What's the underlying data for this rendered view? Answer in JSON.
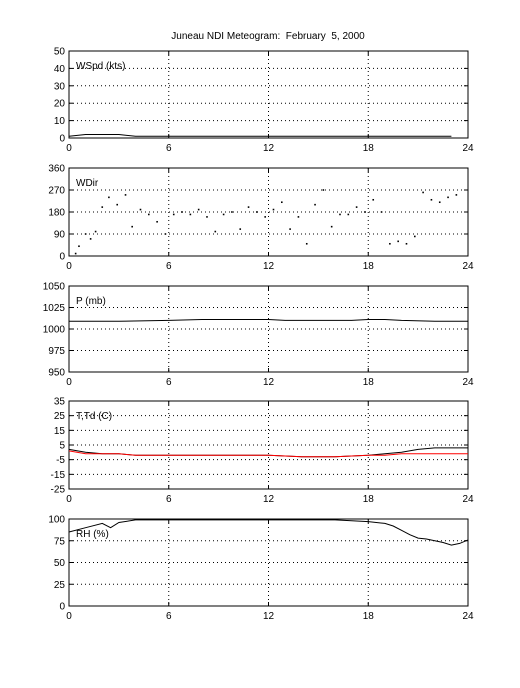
{
  "title": "Juneau NDI Meteogram:  February  5, 2000",
  "colors": {
    "temperature": "#000000",
    "dewpoint": "#ff0000",
    "axis": "#000000",
    "grid": "#000000"
  },
  "chart_data": [
    {
      "type": "line",
      "label": "WSpd (kts)",
      "xlim": [
        0,
        24
      ],
      "ylim": [
        0,
        50
      ],
      "xticks": [
        "0",
        "6",
        "12",
        "18",
        "24"
      ],
      "yticks": [
        "0",
        "10",
        "20",
        "30",
        "40",
        "50"
      ],
      "grid": true,
      "series": [
        {
          "x": [
            0,
            1,
            2,
            3,
            4,
            5,
            6,
            7,
            8,
            9,
            10,
            11,
            12,
            13,
            14,
            15,
            16,
            17,
            18,
            19,
            20,
            21,
            22,
            23
          ],
          "values": [
            1,
            2,
            2,
            2,
            1,
            1,
            1,
            1,
            1,
            1,
            1,
            1,
            1,
            1,
            1,
            1,
            1,
            1,
            1,
            1,
            1,
            1,
            1,
            1
          ]
        }
      ]
    },
    {
      "type": "scatter",
      "label": "WDir",
      "xlim": [
        0,
        24
      ],
      "ylim": [
        0,
        360
      ],
      "xticks": [
        "0",
        "6",
        "12",
        "18",
        "24"
      ],
      "yticks": [
        "0",
        "90",
        "180",
        "270",
        "360"
      ],
      "grid": true,
      "series": [
        {
          "x": [
            0.4,
            0.6,
            1,
            1.3,
            1.6,
            2,
            2.4,
            2.9,
            3.4,
            3.8,
            4.3,
            4.8,
            5.3,
            5.8,
            6.3,
            6.8,
            7.3,
            7.8,
            8.3,
            8.8,
            9.3,
            9.8,
            10.3,
            10.8,
            11.3,
            11.8,
            12.3,
            12.8,
            13.3,
            13.8,
            14.3,
            14.8,
            15.3,
            15.8,
            16.3,
            16.8,
            17.3,
            17.8,
            18.3,
            18.8,
            19.3,
            19.8,
            20.3,
            20.8,
            21.3,
            21.8,
            22.3,
            22.8,
            23.3
          ],
          "values": [
            10,
            40,
            90,
            70,
            100,
            200,
            240,
            210,
            250,
            120,
            190,
            170,
            140,
            90,
            170,
            180,
            170,
            190,
            160,
            100,
            170,
            180,
            110,
            200,
            180,
            160,
            190,
            220,
            110,
            160,
            50,
            210,
            270,
            120,
            170,
            170,
            200,
            180,
            230,
            180,
            50,
            60,
            50,
            80,
            260,
            230,
            220,
            240,
            250
          ]
        }
      ]
    },
    {
      "type": "line",
      "label": "P (mb)",
      "xlim": [
        0,
        24
      ],
      "ylim": [
        950,
        1050
      ],
      "xticks": [
        "0",
        "6",
        "12",
        "18",
        "24"
      ],
      "yticks": [
        "950",
        "975",
        "1000",
        "1025",
        "1050"
      ],
      "grid": true,
      "series": [
        {
          "x": [
            0,
            3,
            6,
            8,
            10,
            12,
            13,
            15,
            17,
            18,
            19,
            20,
            22,
            24
          ],
          "values": [
            1009,
            1009,
            1010,
            1011,
            1011,
            1011,
            1010,
            1010,
            1010,
            1011,
            1011,
            1010,
            1009,
            1009
          ]
        }
      ]
    },
    {
      "type": "line",
      "label": "T,Td (C)",
      "xlim": [
        0,
        24
      ],
      "ylim": [
        -25,
        35
      ],
      "xticks": [
        "0",
        "6",
        "12",
        "18",
        "24"
      ],
      "yticks": [
        "-25",
        "-15",
        "-5",
        "5",
        "15",
        "25",
        "35"
      ],
      "grid": true,
      "series": [
        {
          "x": [
            0,
            1,
            2,
            3,
            4,
            5,
            6,
            8,
            10,
            12,
            14,
            16,
            18,
            19,
            20,
            21,
            22,
            23,
            24
          ],
          "values": [
            2,
            0,
            -1,
            -1,
            -2,
            -2,
            -2,
            -2,
            -2,
            -2,
            -3,
            -3,
            -2,
            -1,
            0,
            2,
            3,
            3,
            3
          ]
        },
        {
          "x": [
            0,
            1,
            2,
            3,
            4,
            5,
            6,
            8,
            10,
            12,
            14,
            16,
            18,
            19,
            20,
            21,
            22,
            23,
            24
          ],
          "values": [
            1,
            -1,
            -1,
            -1,
            -2,
            -2,
            -2,
            -2,
            -2,
            -2,
            -3,
            -3,
            -2,
            -2,
            -1,
            -1,
            -1,
            -1,
            -1
          ]
        }
      ]
    },
    {
      "type": "line",
      "label": "RH (%)",
      "xlim": [
        0,
        24
      ],
      "ylim": [
        0,
        100
      ],
      "xticks": [
        "0",
        "6",
        "12",
        "18",
        "24"
      ],
      "yticks": [
        "0",
        "25",
        "50",
        "75",
        "100"
      ],
      "grid": true,
      "series": [
        {
          "x": [
            0,
            1,
            2,
            2.5,
            3,
            4,
            5,
            6,
            8,
            10,
            12,
            14,
            16,
            18,
            19,
            19.5,
            20,
            20.5,
            21,
            21.5,
            22,
            22.5,
            23,
            23.5,
            24
          ],
          "values": [
            85,
            90,
            95,
            90,
            96,
            99,
            99,
            99,
            99,
            99,
            99,
            99,
            99,
            97,
            95,
            92,
            87,
            82,
            78,
            77,
            75,
            73,
            70,
            72,
            76
          ]
        }
      ]
    }
  ]
}
